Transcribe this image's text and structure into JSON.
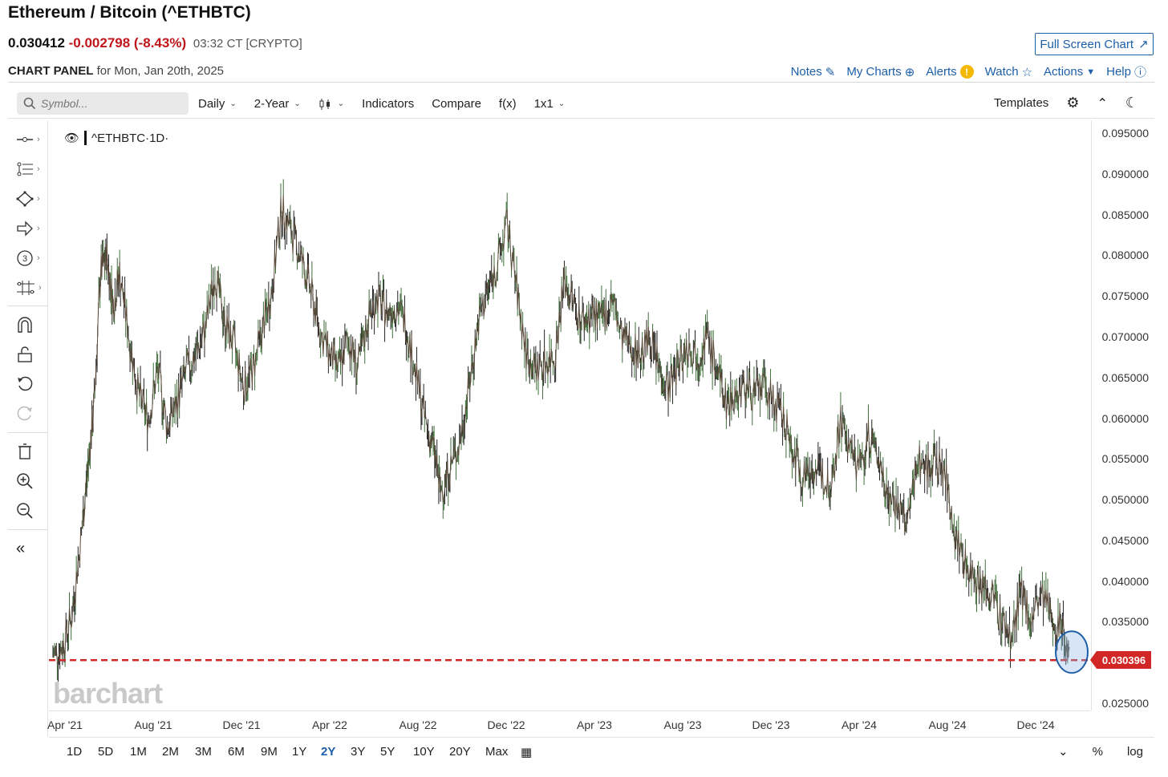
{
  "header": {
    "title": "Ethereum / Bitcoin (^ETHBTC)",
    "last": "0.030412",
    "change": "-0.002798 (-8.43%)",
    "time": "03:32 CT [CRYPTO]",
    "fullscreen": "Full Screen Chart"
  },
  "panel": {
    "label": "CHART PANEL",
    "date": "for Mon, Jan 20th, 2025",
    "actions": [
      "Notes",
      "My Charts",
      "Alerts",
      "Watch",
      "Actions",
      "Help"
    ]
  },
  "toolbar": {
    "search_placeholder": "Symbol...",
    "interval": "Daily",
    "period": "2-Year",
    "indicators": "Indicators",
    "compare": "Compare",
    "fx": "f(x)",
    "layout": "1x1",
    "templates": "Templates"
  },
  "legend": {
    "symbol": "^ETHBTC",
    "interval": "·1D·"
  },
  "watermark": "barchart",
  "price_tag": "0.030396",
  "ranges": [
    "1D",
    "5D",
    "1M",
    "2M",
    "3M",
    "6M",
    "9M",
    "1Y",
    "2Y",
    "3Y",
    "5Y",
    "10Y",
    "20Y",
    "Max"
  ],
  "active_range": "2Y",
  "range_right": [
    "%",
    "log"
  ],
  "colors": {
    "accent": "#1c5fa8",
    "down": "#c0161b",
    "line": "#d12727",
    "up_candle": "#3a7a3a",
    "down_candle": "#8b2c2c"
  },
  "chart_data": {
    "type": "line",
    "x_ticks": [
      "Apr '21",
      "Aug '21",
      "Dec '21",
      "Apr '22",
      "Aug '22",
      "Dec '22",
      "Apr '23",
      "Aug '23",
      "Dec '23",
      "Apr '24",
      "Aug '24",
      "Dec '24"
    ],
    "y_ticks": [
      "0.095000",
      "0.090000",
      "0.085000",
      "0.080000",
      "0.075000",
      "0.070000",
      "0.065000",
      "0.060000",
      "0.055000",
      "0.050000",
      "0.045000",
      "0.040000",
      "0.035000",
      "0.030000",
      "0.025000"
    ],
    "ylim": [
      0.025,
      0.095
    ],
    "horizontal_line": 0.030396,
    "series": [
      {
        "values": [
          [
            0,
            0.031
          ],
          [
            0.3,
            0.032
          ],
          [
            0.6,
            0.036
          ],
          [
            0.9,
            0.046
          ],
          [
            1.1,
            0.054
          ],
          [
            1.3,
            0.062
          ],
          [
            1.5,
            0.078
          ],
          [
            1.7,
            0.08
          ],
          [
            1.9,
            0.074
          ],
          [
            2.1,
            0.078
          ],
          [
            2.4,
            0.07
          ],
          [
            2.7,
            0.063
          ],
          [
            3.0,
            0.06
          ],
          [
            3.3,
            0.066
          ],
          [
            3.6,
            0.059
          ],
          [
            3.9,
            0.062
          ],
          [
            4.2,
            0.066
          ],
          [
            4.5,
            0.068
          ],
          [
            4.8,
            0.071
          ],
          [
            5.1,
            0.078
          ],
          [
            5.4,
            0.072
          ],
          [
            5.7,
            0.069
          ],
          [
            6.0,
            0.064
          ],
          [
            6.3,
            0.066
          ],
          [
            6.6,
            0.071
          ],
          [
            6.9,
            0.076
          ],
          [
            7.2,
            0.086
          ],
          [
            7.5,
            0.083
          ],
          [
            7.8,
            0.08
          ],
          [
            8.1,
            0.076
          ],
          [
            8.4,
            0.071
          ],
          [
            8.7,
            0.068
          ],
          [
            9.0,
            0.066
          ],
          [
            9.3,
            0.07
          ],
          [
            9.6,
            0.066
          ],
          [
            9.9,
            0.072
          ],
          [
            10.2,
            0.075
          ],
          [
            10.5,
            0.073
          ],
          [
            10.8,
            0.074
          ],
          [
            11.1,
            0.072
          ],
          [
            11.4,
            0.066
          ],
          [
            11.7,
            0.06
          ],
          [
            12.0,
            0.056
          ],
          [
            12.2,
            0.051
          ],
          [
            12.5,
            0.054
          ],
          [
            12.8,
            0.057
          ],
          [
            13.1,
            0.064
          ],
          [
            13.4,
            0.072
          ],
          [
            13.7,
            0.076
          ],
          [
            14.0,
            0.079
          ],
          [
            14.3,
            0.084
          ],
          [
            14.6,
            0.076
          ],
          [
            14.9,
            0.068
          ],
          [
            15.2,
            0.066
          ],
          [
            15.5,
            0.067
          ],
          [
            15.8,
            0.068
          ],
          [
            16.1,
            0.077
          ],
          [
            16.4,
            0.074
          ],
          [
            16.7,
            0.072
          ],
          [
            17.0,
            0.073
          ],
          [
            17.3,
            0.072
          ],
          [
            17.6,
            0.075
          ],
          [
            17.9,
            0.07
          ],
          [
            18.2,
            0.069
          ],
          [
            18.5,
            0.068
          ],
          [
            18.8,
            0.07
          ],
          [
            19.1,
            0.066
          ],
          [
            19.4,
            0.064
          ],
          [
            19.7,
            0.067
          ],
          [
            20.0,
            0.069
          ],
          [
            20.3,
            0.068
          ],
          [
            20.6,
            0.07
          ],
          [
            20.9,
            0.066
          ],
          [
            21.2,
            0.062
          ],
          [
            21.5,
            0.063
          ],
          [
            21.8,
            0.064
          ],
          [
            22.1,
            0.063
          ],
          [
            22.4,
            0.064
          ],
          [
            22.7,
            0.062
          ],
          [
            23.0,
            0.06
          ],
          [
            23.3,
            0.056
          ],
          [
            23.6,
            0.053
          ],
          [
            23.9,
            0.054
          ],
          [
            24.2,
            0.053
          ],
          [
            24.5,
            0.052
          ],
          [
            24.8,
            0.06
          ],
          [
            25.1,
            0.056
          ],
          [
            25.4,
            0.054
          ],
          [
            25.7,
            0.058
          ],
          [
            26.0,
            0.055
          ],
          [
            26.3,
            0.051
          ],
          [
            26.6,
            0.049
          ],
          [
            26.9,
            0.047
          ],
          [
            27.2,
            0.055
          ],
          [
            27.5,
            0.054
          ],
          [
            27.8,
            0.055
          ],
          [
            28.1,
            0.053
          ],
          [
            28.4,
            0.046
          ],
          [
            28.7,
            0.042
          ],
          [
            29.0,
            0.041
          ],
          [
            29.3,
            0.039
          ],
          [
            29.6,
            0.038
          ],
          [
            29.9,
            0.035
          ],
          [
            30.2,
            0.033
          ],
          [
            30.5,
            0.039
          ],
          [
            30.8,
            0.035
          ],
          [
            31.1,
            0.038
          ],
          [
            31.4,
            0.036
          ],
          [
            31.7,
            0.035
          ],
          [
            32.0,
            0.032
          ]
        ]
      }
    ]
  }
}
